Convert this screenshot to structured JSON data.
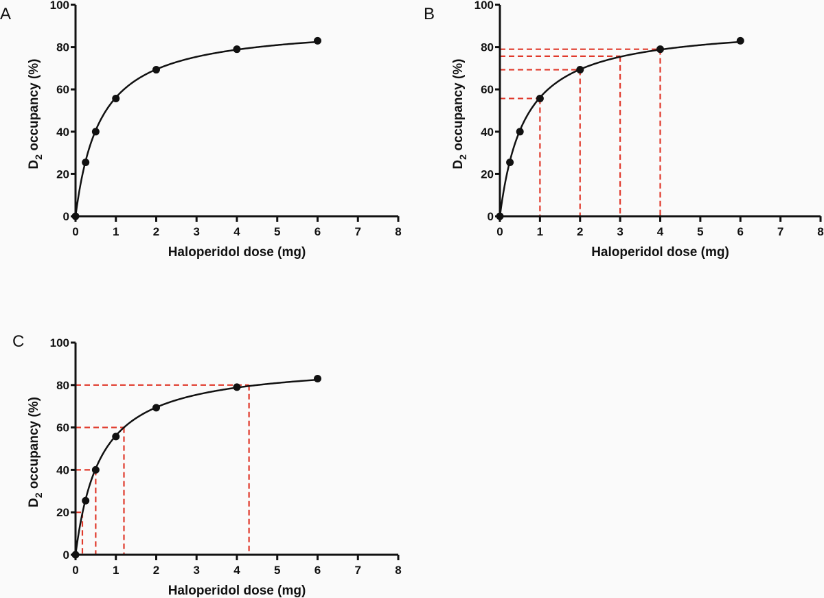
{
  "chart_data": [
    {
      "panel": "A",
      "type": "scatter",
      "title": "",
      "xlabel": "Haloperidol dose (mg)",
      "ylabel_main": "D",
      "ylabel_sub": "2",
      "ylabel_rest": " occupancy (%)",
      "xlim": [
        0,
        8
      ],
      "ylim": [
        0,
        100
      ],
      "xticks": [
        "0",
        "1",
        "2",
        "3",
        "4",
        "5",
        "6",
        "7",
        "8"
      ],
      "yticks": [
        "0",
        "20",
        "40",
        "60",
        "80",
        "100"
      ],
      "grid": false,
      "points": {
        "x": [
          0,
          0.25,
          0.5,
          1,
          2,
          4,
          6
        ],
        "y": [
          0,
          25.5,
          40,
          55.7,
          69.3,
          79,
          83
        ]
      },
      "fit": {
        "model": "Emax",
        "emax": 91,
        "ed50": 0.62
      },
      "reference_lines": []
    },
    {
      "panel": "B",
      "type": "scatter",
      "title": "",
      "xlabel": "Haloperidol dose (mg)",
      "ylabel_main": "D",
      "ylabel_sub": "2",
      "ylabel_rest": " occupancy (%)",
      "xlim": [
        0,
        8
      ],
      "ylim": [
        0,
        100
      ],
      "xticks": [
        "0",
        "1",
        "2",
        "3",
        "4",
        "5",
        "6",
        "7",
        "8"
      ],
      "yticks": [
        "0",
        "20",
        "40",
        "60",
        "80",
        "100"
      ],
      "grid": false,
      "points": {
        "x": [
          0,
          0.25,
          0.5,
          1,
          2,
          4,
          6
        ],
        "y": [
          0,
          25.5,
          40,
          55.7,
          69.3,
          79,
          83
        ]
      },
      "fit": {
        "model": "Emax",
        "emax": 91,
        "ed50": 0.62
      },
      "reference_lines": [
        {
          "x": 1,
          "y": 55.7
        },
        {
          "x": 2,
          "y": 69.3
        },
        {
          "x": 3,
          "y": 75.7
        },
        {
          "x": 4,
          "y": 79
        }
      ],
      "reference_color": "#e0392b"
    },
    {
      "panel": "C",
      "type": "scatter",
      "title": "",
      "xlabel": "Haloperidol dose (mg)",
      "ylabel_main": "D",
      "ylabel_sub": "2",
      "ylabel_rest": " occupancy (%)",
      "xlim": [
        0,
        8
      ],
      "ylim": [
        0,
        100
      ],
      "xticks": [
        "0",
        "1",
        "2",
        "3",
        "4",
        "5",
        "6",
        "7",
        "8"
      ],
      "yticks": [
        "0",
        "20",
        "40",
        "60",
        "80",
        "100"
      ],
      "grid": false,
      "points": {
        "x": [
          0,
          0.25,
          0.5,
          1,
          2,
          4,
          6
        ],
        "y": [
          0,
          25.5,
          40,
          55.7,
          69.3,
          79,
          83
        ]
      },
      "fit": {
        "model": "Emax",
        "emax": 91,
        "ed50": 0.62
      },
      "reference_lines": [
        {
          "x": 0.17,
          "y": 20
        },
        {
          "x": 0.5,
          "y": 40
        },
        {
          "x": 1.2,
          "y": 60
        },
        {
          "x": 4.3,
          "y": 80
        }
      ],
      "reference_color": "#e0392b"
    }
  ],
  "colors": {
    "axis": "#111111",
    "curve": "#111111",
    "point": "#111111",
    "reference": "#e0392b",
    "background": "#fafafa"
  }
}
